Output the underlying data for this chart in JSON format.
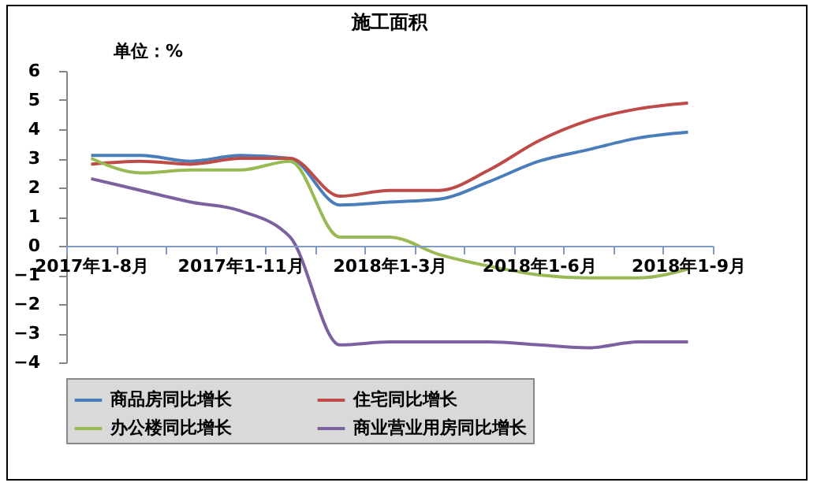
{
  "chart_data": {
    "type": "line",
    "title": "施工面积",
    "annotations": [
      "单位：%"
    ],
    "categories": [
      "2017年1-8月",
      null,
      null,
      "2017年1-11月",
      null,
      null,
      "2018年1-3月",
      null,
      null,
      "2018年1-6月",
      null,
      null,
      "2018年1-9月"
    ],
    "series": [
      {
        "name": "商品房同比增长",
        "color": "#4a7ebb",
        "values": [
          3.1,
          3.1,
          2.9,
          3.1,
          3.0,
          1.4,
          1.5,
          1.6,
          2.2,
          2.9,
          3.3,
          3.7,
          3.9
        ]
      },
      {
        "name": "住宅同比增长",
        "color": "#be4b48",
        "values": [
          2.8,
          2.9,
          2.8,
          3.0,
          3.0,
          1.7,
          1.9,
          1.9,
          2.6,
          3.6,
          4.3,
          4.7,
          4.9
        ]
      },
      {
        "name": "办公楼同比增长",
        "color": "#98b954",
        "values": [
          3.0,
          2.5,
          2.6,
          2.6,
          2.9,
          0.3,
          0.3,
          -0.3,
          -0.7,
          -1.0,
          -1.1,
          -1.1,
          -0.8
        ]
      },
      {
        "name": "商业营业用房同比增长",
        "color": "#7d60a0",
        "values": [
          2.3,
          1.9,
          1.5,
          1.2,
          0.3,
          -3.4,
          -3.3,
          -3.3,
          -3.3,
          -3.4,
          -3.5,
          -3.3,
          -3.3
        ]
      }
    ],
    "ylim": [
      -4,
      6
    ],
    "yticks": [
      -4,
      -3,
      -2,
      -1,
      0,
      1,
      2,
      3,
      4,
      5,
      6
    ],
    "grid": false,
    "legend": "bottom",
    "marker": "none",
    "line_style": "solid"
  }
}
